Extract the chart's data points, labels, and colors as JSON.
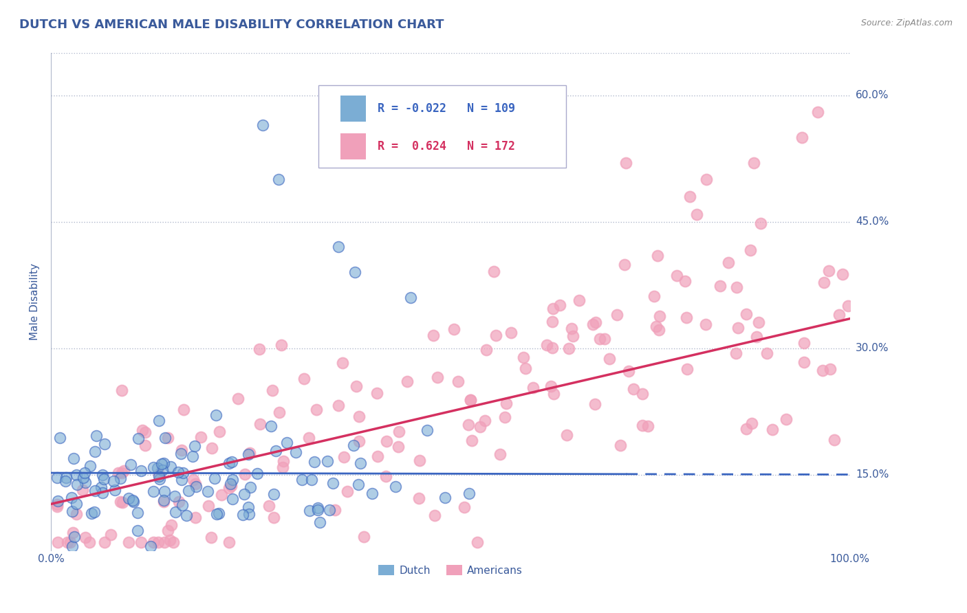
{
  "title": "DUTCH VS AMERICAN MALE DISABILITY CORRELATION CHART",
  "source": "Source: ZipAtlas.com",
  "ylabel": "Male Disability",
  "xlim": [
    0.0,
    1.0
  ],
  "ylim": [
    0.06,
    0.65
  ],
  "yticks": [
    0.15,
    0.3,
    0.45,
    0.6
  ],
  "ytick_labels": [
    "15.0%",
    "30.0%",
    "45.0%",
    "60.0%"
  ],
  "xticks": [
    0.0,
    1.0
  ],
  "xtick_labels": [
    "0.0%",
    "100.0%"
  ],
  "title_color": "#3a5a9b",
  "axis_color": "#3a5a9b",
  "tick_color": "#3a5a9b",
  "source_color": "#888888",
  "grid_color": "#b0b8cc",
  "dutch_color": "#7badd4",
  "american_color": "#f0a0ba",
  "dutch_line_color": "#3a65c0",
  "american_line_color": "#d43060",
  "dutch_R": -0.022,
  "dutch_N": 109,
  "american_R": 0.624,
  "american_N": 172,
  "legend_labels": [
    "Dutch",
    "Americans"
  ],
  "background_color": "#ffffff",
  "dutch_seed": 123,
  "american_seed": 456
}
